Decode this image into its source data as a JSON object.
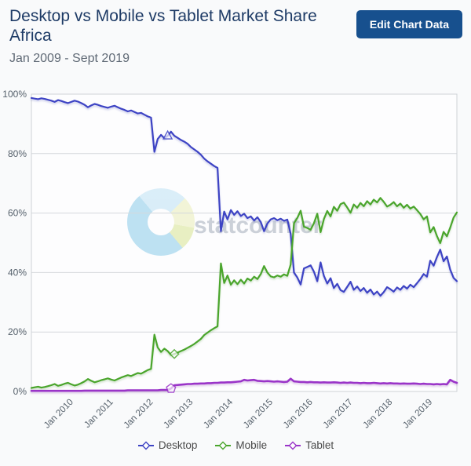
{
  "header": {
    "title": "Desktop vs Mobile vs Tablet Market Share Africa",
    "subtitle": "Jan 2009 - Sept 2019",
    "edit_button_label": "Edit Chart Data"
  },
  "watermark": {
    "text": "statcounter"
  },
  "colors": {
    "desktop": "#3d43c4",
    "mobile": "#4aa52c",
    "tablet": "#9a34c8",
    "title_text": "#1e3b66",
    "button_bg": "#17508e",
    "grid": "#d5d8db",
    "axis_text": "#55606b"
  },
  "chart_data": {
    "type": "line",
    "title": "Desktop vs Mobile vs Tablet Market Share Africa",
    "period": "Jan 2009 - Sept 2019",
    "x_unit": "month",
    "x_start": "2009-01",
    "x_end": "2019-09",
    "ylim": [
      0,
      100
    ],
    "grid": true,
    "legend_position": "bottom",
    "y_tick_labels": [
      "0%",
      "20%",
      "40%",
      "60%",
      "80%",
      "100%"
    ],
    "x_tick_month_indices": [
      12,
      24,
      36,
      48,
      60,
      72,
      84,
      96,
      108,
      120
    ],
    "x_tick_labels": [
      "Jan 2010",
      "Jan 2011",
      "Jan 2012",
      "Jan 2013",
      "Jan 2014",
      "Jan 2015",
      "Jan 2016",
      "Jan 2017",
      "Jan 2018",
      "Jan 2019"
    ],
    "series": [
      {
        "name": "Desktop",
        "color": "#3d43c4",
        "values": [
          98.7,
          98.5,
          98.3,
          98.6,
          98.4,
          98.1,
          97.8,
          97.4,
          98.0,
          97.7,
          97.3,
          97.0,
          97.4,
          97.8,
          97.5,
          97.0,
          96.4,
          95.6,
          96.2,
          96.7,
          96.4,
          96.0,
          95.7,
          95.4,
          95.8,
          96.1,
          95.6,
          95.1,
          94.7,
          94.2,
          94.5,
          94.0,
          93.5,
          93.7,
          93.1,
          92.5,
          92.1,
          80.6,
          84.9,
          86.3,
          85.2,
          86.0,
          87.4,
          86.0,
          85.3,
          84.6,
          84.0,
          83.3,
          82.2,
          81.4,
          80.6,
          79.6,
          78.3,
          77.4,
          76.6,
          75.8,
          75.2,
          53.9,
          60.5,
          57.9,
          61.0,
          59.4,
          60.6,
          59.0,
          59.8,
          58.3,
          58.9,
          57.5,
          58.6,
          57.0,
          53.9,
          56.5,
          57.9,
          58.3,
          57.6,
          58.1,
          57.4,
          57.8,
          53.0,
          40.0,
          38.3,
          36.0,
          41.4,
          41.9,
          42.4,
          40.3,
          37.1,
          43.4,
          38.9,
          36.3,
          38.1,
          34.8,
          36.2,
          34.1,
          33.5,
          35.2,
          36.9,
          34.2,
          35.3,
          33.8,
          34.8,
          33.2,
          34.3,
          32.6,
          33.6,
          32.2,
          33.4,
          35.1,
          34.4,
          33.6,
          35.0,
          34.2,
          35.5,
          34.6,
          35.9,
          35.1,
          36.4,
          37.8,
          39.5,
          38.6,
          44.0,
          42.3,
          45.2,
          47.7,
          43.8,
          45.4,
          41.0,
          38.2,
          37.1
        ]
      },
      {
        "name": "Mobile",
        "color": "#4aa52c",
        "values": [
          1.2,
          1.4,
          1.6,
          1.3,
          1.5,
          1.8,
          2.1,
          2.5,
          1.9,
          2.2,
          2.6,
          2.9,
          2.4,
          2.0,
          2.3,
          2.8,
          3.4,
          4.2,
          3.6,
          3.1,
          3.4,
          3.8,
          4.1,
          4.4,
          4.0,
          3.7,
          4.2,
          4.7,
          5.1,
          5.5,
          5.2,
          5.7,
          6.2,
          6.0,
          6.6,
          7.2,
          7.6,
          19.1,
          14.8,
          13.3,
          14.4,
          13.6,
          12.3,
          12.6,
          13.1,
          13.6,
          14.1,
          14.7,
          15.3,
          16.0,
          16.8,
          17.7,
          19.0,
          19.8,
          20.6,
          21.3,
          21.9,
          43.1,
          36.5,
          39.0,
          35.9,
          37.4,
          36.1,
          37.6,
          36.3,
          38.0,
          37.3,
          38.6,
          37.8,
          39.5,
          42.2,
          40.0,
          38.7,
          38.4,
          39.0,
          38.6,
          39.4,
          38.9,
          42.7,
          56.6,
          58.4,
          60.8,
          55.4,
          55.0,
          54.4,
          56.6,
          59.8,
          53.6,
          58.0,
          60.7,
          58.9,
          62.1,
          60.8,
          63.0,
          63.5,
          61.9,
          60.1,
          62.9,
          61.8,
          63.4,
          62.3,
          64.0,
          62.9,
          64.5,
          63.6,
          65.1,
          63.8,
          62.2,
          62.8,
          63.7,
          62.3,
          63.2,
          61.8,
          62.8,
          61.5,
          62.2,
          61.0,
          59.7,
          57.9,
          58.9,
          53.5,
          55.3,
          52.3,
          49.9,
          53.7,
          52.2,
          55.1,
          58.5,
          60.2
        ]
      },
      {
        "name": "Tablet",
        "color": "#9a34c8",
        "values": [
          0.2,
          0.2,
          0.2,
          0.2,
          0.2,
          0.2,
          0.2,
          0.2,
          0.2,
          0.2,
          0.2,
          0.2,
          0.2,
          0.2,
          0.2,
          0.2,
          0.3,
          0.3,
          0.3,
          0.3,
          0.3,
          0.3,
          0.3,
          0.3,
          0.3,
          0.3,
          0.3,
          0.3,
          0.3,
          0.4,
          0.4,
          0.4,
          0.4,
          0.4,
          0.4,
          0.4,
          0.4,
          0.4,
          0.4,
          0.5,
          0.5,
          0.5,
          1.0,
          2.1,
          2.2,
          2.3,
          2.4,
          2.5,
          2.5,
          2.6,
          2.6,
          2.7,
          2.7,
          2.8,
          2.8,
          2.9,
          2.9,
          3.0,
          3.0,
          3.1,
          3.1,
          3.2,
          3.3,
          3.4,
          3.9,
          3.7,
          3.8,
          3.9,
          3.6,
          3.5,
          3.4,
          3.5,
          3.4,
          3.3,
          3.4,
          3.3,
          3.2,
          3.3,
          4.3,
          3.4,
          3.3,
          3.2,
          3.2,
          3.1,
          3.2,
          3.1,
          3.1,
          3.0,
          3.1,
          3.0,
          3.0,
          3.1,
          3.0,
          2.9,
          3.0,
          2.9,
          3.0,
          2.9,
          2.9,
          2.8,
          2.9,
          2.8,
          2.8,
          2.9,
          2.8,
          2.7,
          2.8,
          2.7,
          2.8,
          2.7,
          2.7,
          2.6,
          2.7,
          2.6,
          2.6,
          2.7,
          2.6,
          2.5,
          2.6,
          2.5,
          2.5,
          2.4,
          2.5,
          2.4,
          2.5,
          2.4,
          3.9,
          3.3,
          2.9
        ]
      }
    ],
    "annotations": [
      {
        "series": "Desktop",
        "month_index": 41,
        "shape": "triangle"
      },
      {
        "series": "Mobile",
        "month_index": 43,
        "shape": "diamond"
      },
      {
        "series": "Tablet",
        "month_index": 42,
        "shape": "pentagon"
      }
    ]
  },
  "legend": {
    "items": [
      {
        "label": "Desktop",
        "color": "#3d43c4"
      },
      {
        "label": "Mobile",
        "color": "#4aa52c"
      },
      {
        "label": "Tablet",
        "color": "#9a34c8"
      }
    ]
  }
}
